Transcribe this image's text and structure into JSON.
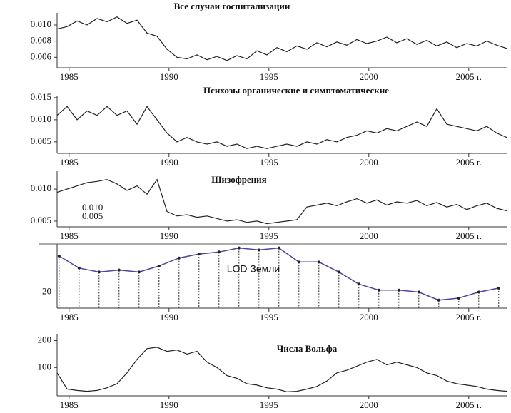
{
  "chart_data": [
    {
      "type": "line",
      "title": "Все случаи госпитализации",
      "color": "#222",
      "x": [
        1984.4,
        1984.9,
        1985.4,
        1985.9,
        1986.4,
        1986.9,
        1987.4,
        1987.9,
        1988.4,
        1988.9,
        1989.4,
        1989.9,
        1990.4,
        1990.9,
        1991.4,
        1991.9,
        1992.4,
        1992.9,
        1993.4,
        1993.9,
        1994.4,
        1994.9,
        1995.4,
        1995.9,
        1996.4,
        1996.9,
        1997.4,
        1997.9,
        1998.4,
        1998.9,
        1999.4,
        1999.9,
        2000.4,
        2000.9,
        2001.4,
        2001.9,
        2002.4,
        2002.9,
        2003.4,
        2003.9,
        2004.4,
        2004.9,
        2005.4,
        2005.9,
        2006.4,
        2006.9
      ],
      "values": [
        0.0095,
        0.0098,
        0.0105,
        0.01,
        0.0108,
        0.0104,
        0.011,
        0.0102,
        0.0106,
        0.009,
        0.0086,
        0.007,
        0.006,
        0.0058,
        0.0063,
        0.0057,
        0.0061,
        0.0056,
        0.0062,
        0.0058,
        0.0068,
        0.0063,
        0.0072,
        0.0067,
        0.0074,
        0.007,
        0.0078,
        0.0073,
        0.0079,
        0.0075,
        0.0082,
        0.0077,
        0.008,
        0.0085,
        0.0078,
        0.0083,
        0.0076,
        0.0081,
        0.0074,
        0.0079,
        0.0072,
        0.0077,
        0.0074,
        0.008,
        0.0075,
        0.0071
      ],
      "xlim": [
        1984.4,
        2006.9
      ],
      "ylim": [
        0.0047,
        0.0115
      ],
      "xticks": [
        1985,
        1990,
        1995,
        2000,
        {
          "value": 2005,
          "label": "2005 г."
        }
      ],
      "yticks": [
        0.006,
        0.008,
        {
          "value": 0.01,
          "label": "0.010"
        }
      ]
    },
    {
      "type": "line",
      "title": "Психозы органические и симптоматические",
      "color": "#222",
      "x": [
        1984.4,
        1984.9,
        1985.4,
        1985.9,
        1986.4,
        1986.9,
        1987.4,
        1987.9,
        1988.4,
        1988.9,
        1989.4,
        1989.9,
        1990.4,
        1990.9,
        1991.4,
        1991.9,
        1992.4,
        1992.9,
        1993.4,
        1993.9,
        1994.4,
        1994.9,
        1995.4,
        1995.9,
        1996.4,
        1996.9,
        1997.4,
        1997.9,
        1998.4,
        1998.9,
        1999.4,
        1999.9,
        2000.4,
        2000.9,
        2001.4,
        2001.9,
        2002.4,
        2002.9,
        2003.4,
        2003.9,
        2004.4,
        2004.9,
        2005.4,
        2005.9,
        2006.4,
        2006.9
      ],
      "values": [
        0.011,
        0.013,
        0.01,
        0.012,
        0.011,
        0.013,
        0.011,
        0.012,
        0.009,
        0.013,
        0.01,
        0.007,
        0.005,
        0.006,
        0.005,
        0.0045,
        0.005,
        0.004,
        0.0045,
        0.0035,
        0.004,
        0.0035,
        0.004,
        0.0045,
        0.004,
        0.005,
        0.0045,
        0.0055,
        0.005,
        0.006,
        0.0065,
        0.0075,
        0.007,
        0.008,
        0.0075,
        0.0085,
        0.0095,
        0.0085,
        0.0125,
        0.009,
        0.0085,
        0.008,
        0.0075,
        0.0085,
        0.007,
        0.006
      ],
      "xlim": [
        1984.4,
        2006.9
      ],
      "ylim": [
        0.0024,
        0.0153
      ],
      "xticks": [
        1985,
        1990,
        1995,
        2000,
        {
          "value": 2005,
          "label": "2005 г."
        }
      ],
      "yticks": [
        0.005,
        {
          "value": 0.01,
          "label": "0.010"
        },
        0.015
      ]
    },
    {
      "type": "line",
      "title": "Шизофрения",
      "color": "#222",
      "annotations": [
        "0.010",
        "0.005"
      ],
      "x": [
        1984.4,
        1984.9,
        1985.4,
        1985.9,
        1986.4,
        1986.9,
        1987.4,
        1987.9,
        1988.4,
        1988.9,
        1989.4,
        1989.9,
        1990.4,
        1990.9,
        1991.4,
        1991.9,
        1992.4,
        1992.9,
        1993.4,
        1993.9,
        1994.4,
        1994.9,
        1995.4,
        1995.9,
        1996.4,
        1996.9,
        1997.4,
        1997.9,
        1998.4,
        1998.9,
        1999.4,
        1999.9,
        2000.4,
        2000.9,
        2001.4,
        2001.9,
        2002.4,
        2002.9,
        2003.4,
        2003.9,
        2004.4,
        2004.9,
        2005.4,
        2005.9,
        2006.4,
        2006.9
      ],
      "values": [
        0.0095,
        0.01,
        0.0105,
        0.011,
        0.0112,
        0.0115,
        0.0108,
        0.0098,
        0.0105,
        0.0092,
        0.0115,
        0.0065,
        0.0058,
        0.006,
        0.0056,
        0.0058,
        0.0054,
        0.005,
        0.0052,
        0.0048,
        0.005,
        0.0046,
        0.0048,
        0.005,
        0.0052,
        0.0072,
        0.0075,
        0.0078,
        0.0074,
        0.008,
        0.0085,
        0.0078,
        0.0083,
        0.0075,
        0.008,
        0.0078,
        0.0082,
        0.0074,
        0.0079,
        0.0072,
        0.0076,
        0.0068,
        0.0074,
        0.0078,
        0.007,
        0.0066
      ],
      "xlim": [
        1984.4,
        2006.9
      ],
      "ylim": [
        0.0041,
        0.0128
      ],
      "xticks": [
        1985,
        1990,
        1995,
        2000,
        {
          "value": 2005,
          "label": "2005 г."
        }
      ],
      "yticks": [
        0.005,
        {
          "value": 0.01,
          "label": "0.010"
        }
      ]
    },
    {
      "type": "stem",
      "title": "LOD Земли",
      "color": "#5a3fa0",
      "x": [
        1984.5,
        1985.5,
        1986.5,
        1987.5,
        1988.5,
        1989.5,
        1990.5,
        1991.5,
        1992.5,
        1993.5,
        1994.5,
        1995.5,
        1996.5,
        1997.5,
        1998.5,
        1999.5,
        2000.5,
        2001.5,
        2002.5,
        2003.5,
        2004.5,
        2005.5,
        2006.5
      ],
      "values": [
        -2,
        -8,
        -10,
        -9,
        -10,
        -7,
        -3,
        -1,
        0,
        2,
        1,
        2,
        -5,
        -5,
        -10,
        -16,
        -19,
        -19,
        -20,
        -24,
        -23,
        -20,
        -18
      ],
      "xlim": [
        1984.4,
        2006.9
      ],
      "ylim": [
        -28,
        4
      ],
      "xticks": [
        1985,
        1990,
        1995,
        2000,
        {
          "value": 2005,
          "label": "2005 г."
        }
      ],
      "yticks": [
        -20
      ]
    },
    {
      "type": "line",
      "title": "Числа Вольфа",
      "color": "#222",
      "x": [
        1984.4,
        1984.9,
        1985.4,
        1985.9,
        1986.4,
        1986.9,
        1987.4,
        1987.9,
        1988.4,
        1988.9,
        1989.4,
        1989.9,
        1990.4,
        1990.9,
        1991.4,
        1991.9,
        1992.4,
        1992.9,
        1993.4,
        1993.9,
        1994.4,
        1994.9,
        1995.4,
        1995.9,
        1996.4,
        1996.9,
        1997.4,
        1997.9,
        1998.4,
        1998.9,
        1999.4,
        1999.9,
        2000.4,
        2000.9,
        2001.4,
        2001.9,
        2002.4,
        2002.9,
        2003.4,
        2003.9,
        2004.4,
        2004.9,
        2005.4,
        2005.9,
        2006.4,
        2006.9
      ],
      "values": [
        80,
        20,
        15,
        12,
        15,
        25,
        40,
        80,
        130,
        170,
        175,
        160,
        165,
        150,
        160,
        120,
        100,
        70,
        60,
        40,
        35,
        25,
        20,
        10,
        12,
        20,
        30,
        50,
        80,
        90,
        105,
        120,
        130,
        110,
        120,
        110,
        100,
        80,
        70,
        50,
        40,
        35,
        30,
        20,
        15,
        12
      ],
      "xlim": [
        1984.4,
        2006.9
      ],
      "ylim": [
        -5,
        225
      ],
      "xticks": [
        1985,
        1990,
        1995,
        2000,
        {
          "value": 2005,
          "label": "2005 г."
        }
      ],
      "yticks": [
        100,
        200
      ]
    }
  ]
}
